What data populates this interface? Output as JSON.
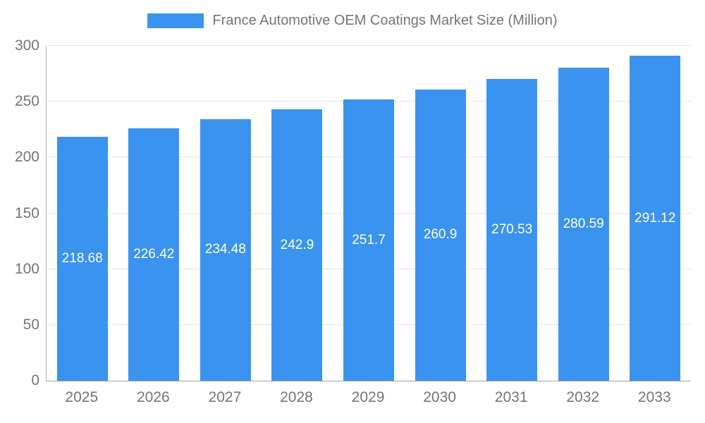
{
  "chart_data": {
    "type": "bar",
    "title": "France Automotive OEM Coatings Market Size (Million)",
    "categories": [
      "2025",
      "2026",
      "2027",
      "2028",
      "2029",
      "2030",
      "2031",
      "2032",
      "2033"
    ],
    "values": [
      218.68,
      226.42,
      234.48,
      242.9,
      251.7,
      260.9,
      270.53,
      280.59,
      291.12
    ],
    "ylim": [
      0,
      300
    ],
    "ytick_step": 50,
    "yticks": [
      0,
      50,
      100,
      150,
      200,
      250,
      300
    ],
    "grid": true,
    "legend_position": "top",
    "bar_color": "#3b93f0",
    "value_label_color": "#ffffff",
    "axis_text_color": "#757575"
  }
}
